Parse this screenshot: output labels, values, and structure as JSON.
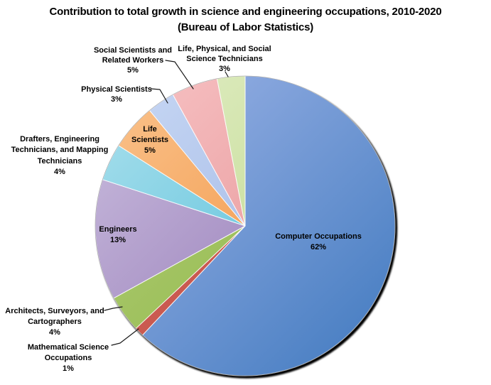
{
  "title": {
    "line1": "Contribution to total growth in science and engineering occupations, 2010-2020",
    "line2": "(Bureau of Labor Statistics)"
  },
  "chart_data": {
    "type": "pie",
    "title": "Contribution to total growth in science and engineering occupations, 2010-2020",
    "subtitle": "(Bureau of Labor Statistics)",
    "unit": "percent",
    "total": 100,
    "start_angle_deg": 0,
    "direction": "clockwise",
    "background_color": "#ffffff",
    "slices": [
      {
        "name": "Computer Occupations",
        "value": 62,
        "pct_label": "62%",
        "label_lines": [
          "Computer Occupations",
          "62%"
        ],
        "label_placement": "inside",
        "color_light": "#93ADE2",
        "color_dark": "#4E82C5"
      },
      {
        "name": "Mathematical Science Occupations",
        "value": 1,
        "pct_label": "1%",
        "label_lines": [
          "Mathematical Science",
          "Occupations",
          "1%"
        ],
        "label_placement": "outside",
        "color_light": "#D56A60",
        "color_dark": "#BE4A41"
      },
      {
        "name": "Architects, Surveyors, and Cartographers",
        "value": 4,
        "pct_label": "4%",
        "label_lines": [
          "Architects, Surveyors, and",
          "Cartographers",
          "4%"
        ],
        "label_placement": "outside",
        "color_light": "#AFCC75",
        "color_dark": "#8FB646"
      },
      {
        "name": "Engineers",
        "value": 13,
        "pct_label": "13%",
        "label_lines": [
          "Engineers",
          "13%"
        ],
        "label_placement": "inside",
        "color_light": "#C2B3D8",
        "color_dark": "#9478B6"
      },
      {
        "name": "Drafters, Engineering Technicians, and Mapping Technicians",
        "value": 4,
        "pct_label": "4%",
        "label_lines": [
          "Drafters, Engineering",
          "Technicians, and Mapping",
          "Technicians",
          "4%"
        ],
        "label_placement": "outside",
        "color_light": "#9EDBEA",
        "color_dark": "#4FBCD8"
      },
      {
        "name": "Life Scientists",
        "value": 5,
        "pct_label": "5%",
        "label_lines": [
          "Life",
          "Scientists",
          "5%"
        ],
        "label_placement": "inside",
        "color_light": "#F9BC82",
        "color_dark": "#F0913D"
      },
      {
        "name": "Physical Scientists",
        "value": 3,
        "pct_label": "3%",
        "label_lines": [
          "Physical Scientists",
          "3%"
        ],
        "label_placement": "outside",
        "color_light": "#C2D3F2",
        "color_dark": "#9CB3E2"
      },
      {
        "name": "Social Scientists and Related Workers",
        "value": 5,
        "pct_label": "5%",
        "label_lines": [
          "Social Scientists and",
          "Related Workers",
          "5%"
        ],
        "label_placement": "outside",
        "color_light": "#F5BCBE",
        "color_dark": "#E59294"
      },
      {
        "name": "Life, Physical, and Social Science Technicians",
        "value": 3,
        "pct_label": "3%",
        "label_lines": [
          "Life, Physical, and Social",
          "Science Technicians",
          "3%"
        ],
        "label_placement": "outside",
        "color_light": "#DCEABD",
        "color_dark": "#BFD98C"
      }
    ]
  }
}
